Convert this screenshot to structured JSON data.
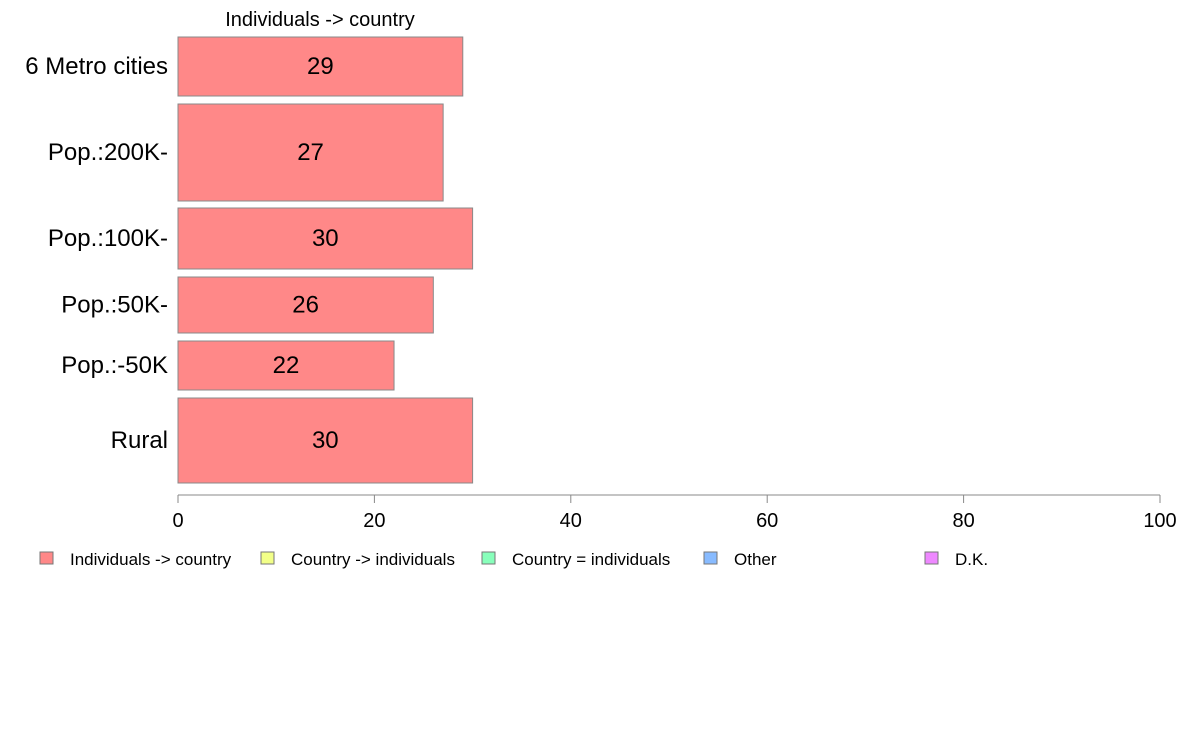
{
  "chart_data": {
    "type": "bar",
    "orientation": "horizontal",
    "title": "Individuals -> country",
    "categories": [
      "6 Metro cities",
      "Pop.:200K-",
      "Pop.:100K-",
      "Pop.:50K-",
      "Pop.:-50K",
      "Rural"
    ],
    "series": [
      {
        "name": "Individuals -> country",
        "values": [
          29,
          27,
          30,
          26,
          22,
          30
        ],
        "color": "#ff8888"
      }
    ],
    "xlim": [
      0,
      100
    ],
    "xticks": [
      0,
      20,
      40,
      60,
      80,
      100
    ],
    "grid": false,
    "legend_position": "bottom",
    "legend": [
      {
        "label": "Individuals -> country",
        "color": "#ff8888"
      },
      {
        "label": "Country -> individuals",
        "color": "#f2ff88"
      },
      {
        "label": "Country = individuals",
        "color": "#88ffbb"
      },
      {
        "label": "Other",
        "color": "#88bbff"
      },
      {
        "label": "D.K.",
        "color": "#ee88ff"
      }
    ]
  }
}
